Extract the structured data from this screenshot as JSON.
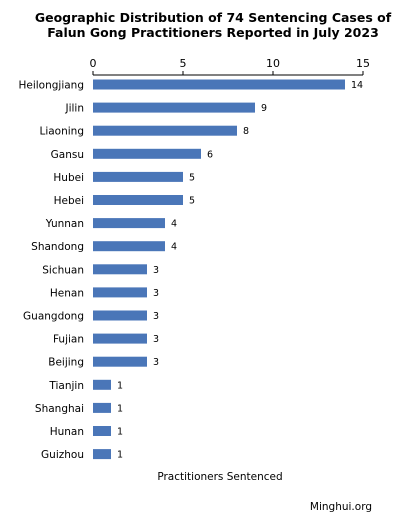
{
  "chart_data": {
    "type": "bar",
    "orientation": "horizontal",
    "title": "Geographic Distribution of 74 Sentencing Cases of Falun Gong Practitioners Reported in July 2023",
    "title_lines": [
      "Geographic Distribution of 74 Sentencing Cases of",
      "Falun Gong Practitioners Reported in July 2023"
    ],
    "xlabel": "Practitioners Sentenced",
    "ylabel": "",
    "xlim": [
      0,
      15
    ],
    "xticks": [
      0,
      5,
      10,
      15
    ],
    "categories": [
      "Heilongjiang",
      "Jilin",
      "Liaoning",
      "Gansu",
      "Hubei",
      "Hebei",
      "Yunnan",
      "Shandong",
      "Sichuan",
      "Henan",
      "Guangdong",
      "Fujian",
      "Beijing",
      "Tianjin",
      "Shanghai",
      "Hunan",
      "Guizhou"
    ],
    "values": [
      14,
      9,
      8,
      6,
      5,
      5,
      4,
      4,
      3,
      3,
      3,
      3,
      3,
      1,
      1,
      1,
      1
    ],
    "grid": false,
    "bar_color": "#4a76b8",
    "axis_position": "top"
  },
  "source": "Minghui.org"
}
